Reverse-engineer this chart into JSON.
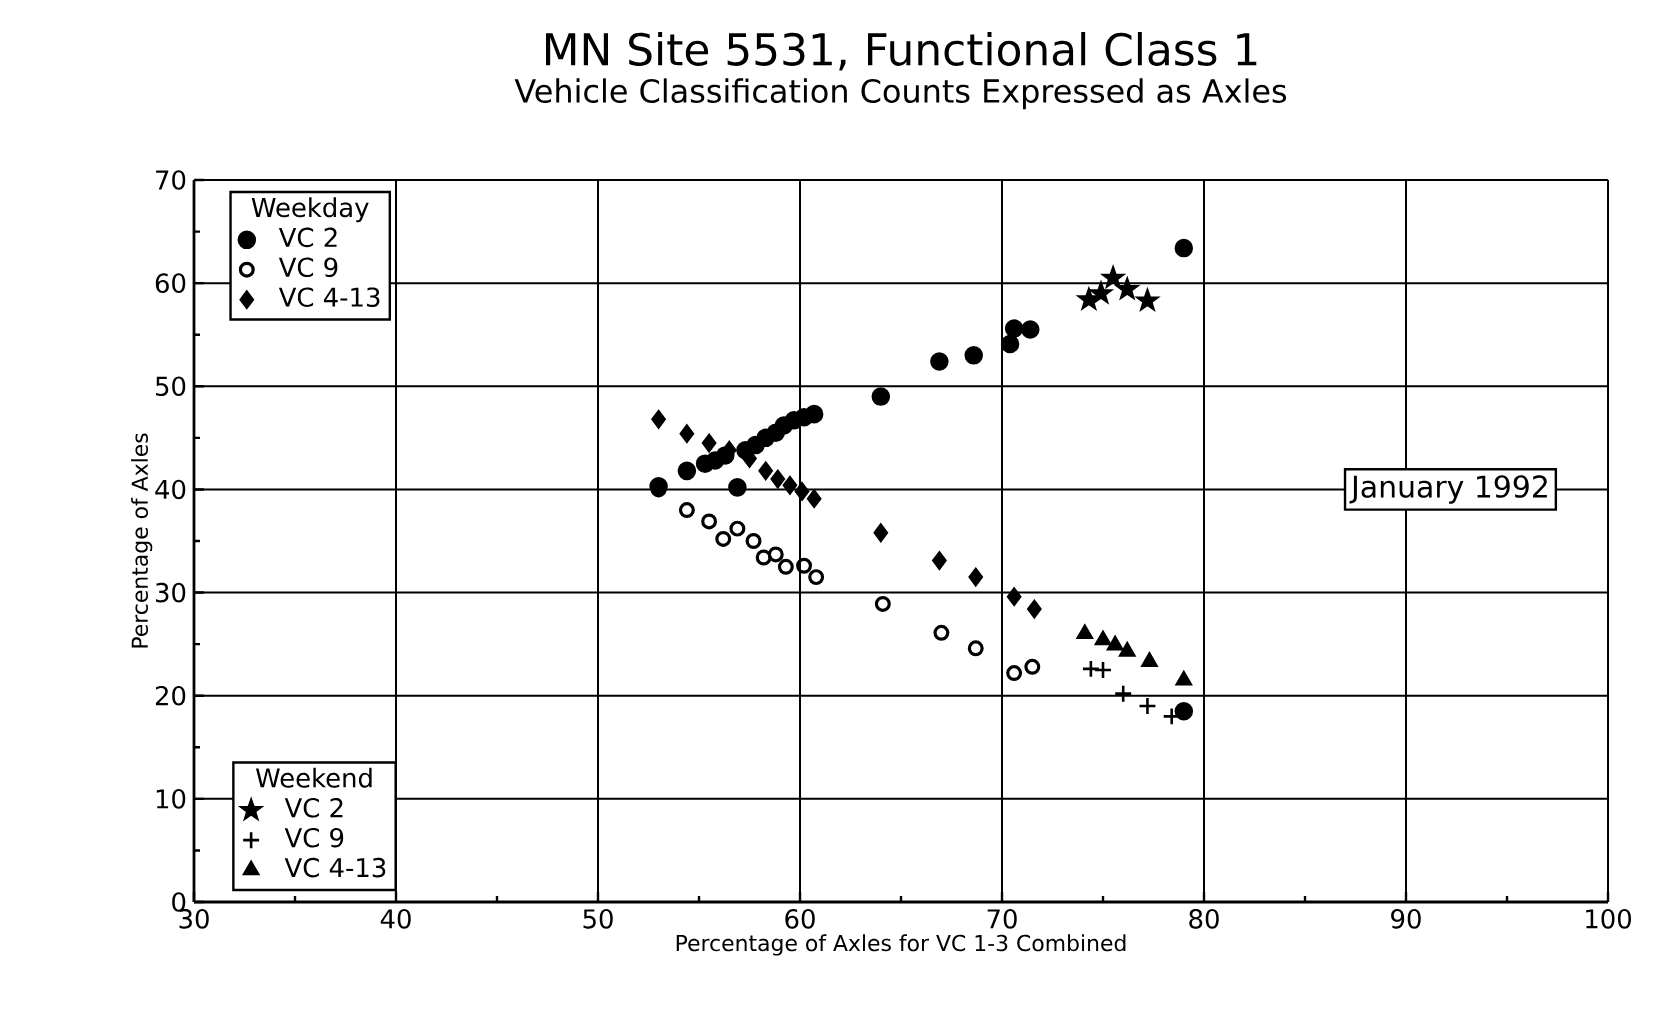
{
  "chart_data": {
    "type": "scatter",
    "title": "MN Site 5531, Functional Class 1",
    "subtitle": "Vehicle Classification Counts Expressed as Axles",
    "xlabel": "Percentage of Axles for VC 1-3 Combined",
    "ylabel": "Percentage of Axles",
    "xlim": [
      30,
      100
    ],
    "xticks": [
      30,
      40,
      50,
      60,
      70,
      80,
      90,
      100
    ],
    "ylim": [
      0,
      70
    ],
    "yticks": [
      0,
      10,
      20,
      30,
      40,
      50,
      60,
      70
    ],
    "grid": true,
    "legend": "left",
    "annotations": [
      "January 1992",
      "Weekday",
      "Weekend"
    ],
    "series": [
      {
        "name": "VC 2",
        "marker": "circle",
        "color": "#000000",
        "x": [
          53.0,
          54.4,
          55.3,
          55.8,
          56.3,
          56.9,
          57.3,
          57.8,
          58.3,
          58.8,
          59.2,
          59.7,
          60.2,
          60.7,
          64.0,
          66.9,
          68.6,
          70.4,
          70.6,
          71.4,
          79.0,
          79.0
        ],
        "values": [
          40.3,
          41.8,
          42.5,
          42.8,
          43.3,
          40.2,
          43.8,
          44.3,
          45.0,
          45.5,
          46.2,
          46.7,
          47.0,
          47.3,
          49.0,
          52.4,
          53.0,
          54.1,
          55.6,
          55.5,
          63.4,
          18.5
        ]
      },
      {
        "name": "VC 9",
        "marker": "circle",
        "color": "#000000",
        "x": [
          53.0,
          54.4,
          55.5,
          56.2,
          56.9,
          57.7,
          58.2,
          58.8,
          59.3,
          60.2,
          60.8,
          64.1,
          67.0,
          68.7,
          70.6,
          71.5
        ],
        "values": [
          40.0,
          38.0,
          36.9,
          35.2,
          36.2,
          35.0,
          33.4,
          33.7,
          32.5,
          32.6,
          31.5,
          28.9,
          26.1,
          24.6,
          22.2,
          22.8
        ]
      },
      {
        "name": "VC 4-13",
        "marker": "diamond",
        "color": "#000000",
        "x": [
          53.0,
          54.4,
          55.5,
          56.5,
          57.5,
          58.3,
          58.9,
          59.5,
          60.1,
          60.7,
          64.0,
          66.9,
          68.7,
          70.6,
          71.6
        ],
        "values": [
          46.8,
          45.4,
          44.5,
          43.8,
          43.0,
          41.8,
          41.0,
          40.4,
          39.8,
          39.1,
          35.8,
          33.1,
          31.5,
          29.6,
          28.4
        ]
      },
      {
        "name": "VC 2",
        "marker": "star",
        "color": "#000000",
        "x": [
          74.3,
          74.9,
          75.5,
          76.2,
          77.2
        ],
        "values": [
          58.4,
          59.0,
          60.5,
          59.4,
          58.3
        ]
      },
      {
        "name": "VC 9",
        "marker": "cross",
        "color": "#000000",
        "x": [
          74.4,
          75.0,
          76.0,
          77.2,
          78.4
        ],
        "values": [
          22.6,
          22.5,
          20.2,
          19.0,
          18.0
        ]
      },
      {
        "name": "VC 4-13",
        "marker": "triangle",
        "color": "#000000",
        "x": [
          74.1,
          75.0,
          75.6,
          76.2,
          77.3,
          79.0
        ],
        "values": [
          26.0,
          25.4,
          24.9,
          24.3,
          23.3,
          21.5
        ]
      }
    ]
  }
}
